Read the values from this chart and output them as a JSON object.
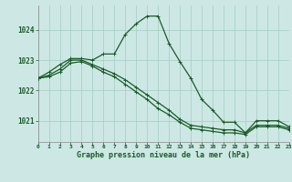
{
  "line1_x": [
    0,
    1,
    2,
    3,
    4,
    5,
    6,
    7,
    8,
    9,
    10,
    11,
    12,
    13,
    14,
    15,
    16,
    17,
    18,
    19,
    20,
    21,
    22,
    23
  ],
  "line1_y": [
    1022.4,
    1022.6,
    1022.85,
    1023.05,
    1023.05,
    1023.0,
    1023.2,
    1023.2,
    1023.85,
    1024.2,
    1024.45,
    1024.45,
    1023.55,
    1022.95,
    1022.4,
    1021.7,
    1021.35,
    1020.95,
    1020.95,
    1020.6,
    1021.0,
    1021.0,
    1021.0,
    1020.8
  ],
  "line2_x": [
    0,
    1,
    2,
    3,
    4,
    5,
    6,
    7,
    8,
    9,
    10,
    11,
    12,
    13,
    14,
    15,
    16,
    17,
    18,
    19,
    20,
    21,
    22,
    23
  ],
  "line2_y": [
    1022.4,
    1022.5,
    1022.7,
    1023.0,
    1023.0,
    1022.85,
    1022.7,
    1022.55,
    1022.35,
    1022.1,
    1021.85,
    1021.6,
    1021.35,
    1021.05,
    1020.85,
    1020.8,
    1020.75,
    1020.7,
    1020.7,
    1020.6,
    1020.85,
    1020.85,
    1020.85,
    1020.75
  ],
  "line3_x": [
    0,
    1,
    2,
    3,
    4,
    5,
    6,
    7,
    8,
    9,
    10,
    11,
    12,
    13,
    14,
    15,
    16,
    17,
    18,
    19,
    20,
    21,
    22,
    23
  ],
  "line3_y": [
    1022.4,
    1022.45,
    1022.6,
    1022.9,
    1022.95,
    1022.8,
    1022.6,
    1022.45,
    1022.2,
    1021.95,
    1021.7,
    1021.4,
    1021.2,
    1020.95,
    1020.75,
    1020.7,
    1020.65,
    1020.6,
    1020.6,
    1020.55,
    1020.8,
    1020.8,
    1020.8,
    1020.7
  ],
  "bg_color": "#cde8e4",
  "grid_color": "#aacfc9",
  "line_color": "#1a5c28",
  "ylim": [
    1020.3,
    1024.8
  ],
  "xlim": [
    0,
    23
  ],
  "yticks": [
    1021,
    1022,
    1023,
    1024
  ],
  "xticks": [
    0,
    1,
    2,
    3,
    4,
    5,
    6,
    7,
    8,
    9,
    10,
    11,
    12,
    13,
    14,
    15,
    16,
    17,
    18,
    19,
    20,
    21,
    22,
    23
  ],
  "xlabel": "Graphe pression niveau de la mer (hPa)",
  "marker": "+"
}
